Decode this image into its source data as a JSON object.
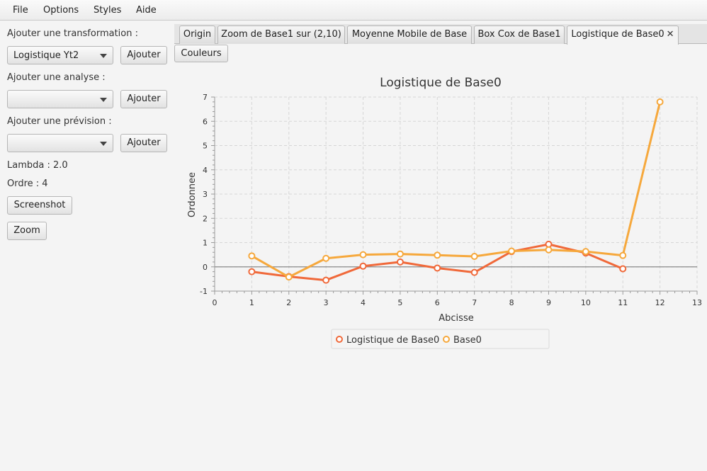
{
  "menu": [
    "File",
    "Options",
    "Styles",
    "Aide"
  ],
  "left_panel": {
    "transformation_label": "Ajouter une transformation :",
    "transformation_value": "Logistique Yt2",
    "analyse_label": "Ajouter une analyse :",
    "analyse_value": "",
    "prevision_label": "Ajouter une prévision :",
    "prevision_value": "",
    "add_button": "Ajouter",
    "lambda_text": "Lambda : 2.0",
    "ordre_text": "Ordre : 4",
    "screenshot_button": "Screenshot",
    "zoom_button": "Zoom"
  },
  "tabs": [
    "Origin",
    "Zoom de Base1 sur (2,10)",
    "Moyenne Mobile de Base",
    "Box Cox de Base1",
    "Logistique de Base0"
  ],
  "active_tab": "Logistique de Base0",
  "close_glyph": "✕",
  "colors_button": "Couleurs",
  "chart_data": {
    "type": "line",
    "title": "Logistique de Base0",
    "xlabel": "Abcisse",
    "ylabel": "Ordonnee",
    "xlim": [
      0,
      13
    ],
    "ylim": [
      -1,
      7
    ],
    "xticks": [
      0,
      1,
      2,
      3,
      4,
      5,
      6,
      7,
      8,
      9,
      10,
      11,
      12,
      13
    ],
    "yticks": [
      -1,
      0,
      1,
      2,
      3,
      4,
      5,
      6,
      7
    ],
    "grid": true,
    "legend_position": "bottom",
    "series": [
      {
        "name": "Logistique de Base0",
        "color": "#f0693a",
        "x": [
          1,
          2,
          3,
          4,
          5,
          6,
          7,
          8,
          9,
          10,
          11
        ],
        "y": [
          -0.2,
          -0.4,
          -0.55,
          0.03,
          0.2,
          -0.05,
          -0.23,
          0.63,
          0.93,
          0.57,
          -0.08
        ]
      },
      {
        "name": "Base0",
        "color": "#f6a83c",
        "x": [
          1,
          2,
          3,
          4,
          5,
          6,
          7,
          8,
          9,
          10,
          11,
          12
        ],
        "y": [
          0.45,
          -0.42,
          0.35,
          0.5,
          0.53,
          0.48,
          0.43,
          0.65,
          0.7,
          0.63,
          0.47,
          6.8
        ]
      }
    ]
  }
}
